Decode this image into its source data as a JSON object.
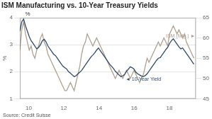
{
  "chart_data": {
    "type": "line",
    "title": "ISM Manufacturing vs. 10-Year Treasury Yields",
    "source": "Source: Credit Suisse",
    "y_label": "%",
    "x": [
      9.5,
      9.606383,
      9.712766,
      9.819149,
      9.925532,
      10.031915,
      10.138298,
      10.244681,
      10.351064,
      10.457447,
      10.56383,
      10.670213,
      10.776596,
      10.882979,
      10.989362,
      11.095745,
      11.202128,
      11.308511,
      11.414894,
      11.521277,
      11.62766,
      11.734043,
      11.840426,
      11.946809,
      12.053191,
      12.159574,
      12.265957,
      12.37234,
      12.478723,
      12.585106,
      12.691489,
      12.797872,
      12.904255,
      13.010638,
      13.117021,
      13.223404,
      13.329787,
      13.43617,
      13.542553,
      13.648936,
      13.755319,
      13.861702,
      13.968085,
      14.074468,
      14.180851,
      14.287234,
      14.393617,
      14.5,
      14.606383,
      14.712766,
      14.819149,
      14.925532,
      15.031915,
      15.138298,
      15.244681,
      15.351064,
      15.457447,
      15.56383,
      15.670213,
      15.776596,
      15.882979,
      15.989362,
      16.095745,
      16.202128,
      16.308511,
      16.414894,
      16.521277,
      16.62766,
      16.734043,
      16.840426,
      16.946809,
      17.053191,
      17.159574,
      17.265957,
      17.37234,
      17.478723,
      17.585106,
      17.691489,
      17.797872,
      17.904255,
      18.010638,
      18.117021,
      18.223404,
      18.329787,
      18.43617,
      18.542553,
      18.648936,
      18.755319,
      18.861702,
      18.968085,
      19.074468,
      19.180851,
      19.287234,
      19.393617
    ],
    "series": [
      {
        "color": "#2e4a6b",
        "values": [
          3.5,
          3.85,
          3.95,
          3.7,
          3.5,
          3.3,
          3.15,
          3.05,
          2.95,
          2.85,
          2.9,
          3.0,
          3.15,
          3.2,
          3.1,
          2.95,
          2.85,
          2.75,
          2.65,
          2.6,
          2.5,
          2.4,
          2.3,
          2.2,
          2.15,
          2.1,
          2.0,
          1.95,
          1.88,
          1.82,
          1.85,
          1.92,
          1.98,
          2.05,
          2.15,
          2.25,
          2.35,
          2.45,
          2.55,
          2.62,
          2.7,
          2.8,
          2.88,
          2.78,
          2.68,
          2.58,
          2.48,
          2.38,
          2.28,
          2.2,
          2.12,
          2.02,
          1.95,
          1.88,
          1.82,
          1.85,
          1.9,
          2.02,
          2.1,
          2.18,
          2.15,
          2.1,
          1.98,
          1.92,
          1.88,
          1.84,
          1.82,
          1.86,
          1.92,
          2.02,
          2.12,
          2.22,
          2.32,
          2.42,
          2.5,
          2.52,
          2.62,
          2.72,
          2.82,
          2.9,
          3.05,
          3.15,
          3.22,
          3.12,
          3.02,
          2.92,
          2.85,
          2.88,
          2.78,
          2.68,
          2.58,
          2.48,
          2.38,
          2.28
        ]
      },
      {
        "color": "#b0a090",
        "axis": "y2",
        "values": [
          57,
          62,
          64,
          61,
          59,
          57,
          58,
          56,
          55,
          57,
          58,
          60,
          61,
          59,
          58,
          56,
          55,
          54,
          53,
          52,
          51,
          50,
          49,
          48,
          47,
          47,
          48,
          49,
          48,
          47,
          49,
          51,
          53,
          56,
          58,
          59,
          61,
          60,
          59,
          58,
          59,
          60,
          59,
          58,
          57,
          56,
          55,
          54,
          53,
          52,
          51,
          50,
          51,
          52,
          51,
          50,
          51,
          52,
          51,
          50,
          51,
          52,
          51,
          50,
          49,
          50,
          51,
          53,
          55,
          54,
          55,
          56,
          57,
          58,
          59,
          58,
          59,
          60,
          59,
          58,
          61,
          62,
          63,
          62,
          61,
          62,
          61,
          60,
          61,
          59,
          58,
          57,
          56,
          55
        ]
      }
    ],
    "xlim": [
      9.5,
      19.5
    ],
    "xticks": [
      10,
      12,
      14,
      16,
      18
    ],
    "ylim": [
      1,
      4
    ],
    "yticks": [
      1,
      2,
      3,
      4
    ],
    "y2lim": [
      45,
      65
    ],
    "y2ticks": [
      45,
      50,
      55,
      60,
      65
    ],
    "grid": true,
    "annotations": [
      {
        "text": "ISM (Mfg.) ►",
        "x": 17.8,
        "y": 60.5,
        "axis": "y2",
        "color": "#b0a090"
      },
      {
        "text": "◄ 10-Year Yield",
        "x": 15.5,
        "y": 1.72,
        "color": "#2e4a6b"
      },
      {
        "text": "%"
      }
    ]
  }
}
